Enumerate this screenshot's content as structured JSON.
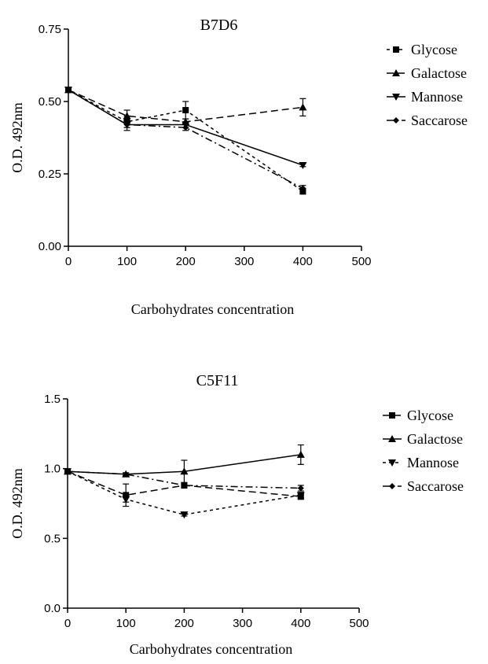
{
  "chart_data": [
    {
      "type": "line",
      "title": "B7D6",
      "xlabel": "Carbohydrates concentration",
      "ylabel": "O.D. 492nm",
      "xlim": [
        0,
        500
      ],
      "ylim": [
        0,
        0.75
      ],
      "x_ticks": [
        "0",
        "100",
        "200",
        "300",
        "400",
        "500"
      ],
      "y_ticks": [
        "0.00",
        "0.25",
        "0.50",
        "0.75"
      ],
      "grid": false,
      "legend_position": "right",
      "x": [
        0,
        100,
        200,
        400
      ],
      "series": [
        {
          "name": "Glycose",
          "marker": "square",
          "dash": "short-dash",
          "values": [
            0.54,
            0.43,
            0.47,
            0.19
          ],
          "errors": [
            0,
            0.02,
            0.03,
            0.01
          ]
        },
        {
          "name": "Galactose",
          "marker": "triangle-up",
          "dash": "dash",
          "values": [
            0.54,
            0.45,
            0.43,
            0.48
          ],
          "errors": [
            0,
            0.02,
            0.01,
            0.03
          ]
        },
        {
          "name": "Mannose",
          "marker": "triangle-down",
          "dash": "solid",
          "values": [
            0.54,
            0.42,
            0.42,
            0.28
          ],
          "errors": [
            0,
            0.02,
            0.01,
            0.005
          ]
        },
        {
          "name": "Saccarose",
          "marker": "diamond",
          "dash": "dash-dot",
          "values": [
            0.54,
            0.42,
            0.41,
            0.2
          ],
          "errors": [
            0,
            0.01,
            0.01,
            0.01
          ]
        }
      ]
    },
    {
      "type": "line",
      "title": "C5F11",
      "xlabel": "Carbohydrates concentration",
      "ylabel": "O.D. 492nm",
      "xlim": [
        0,
        500
      ],
      "ylim": [
        0,
        1.5
      ],
      "x_ticks": [
        "0",
        "100",
        "200",
        "300",
        "400",
        "500"
      ],
      "y_ticks": [
        "0.0",
        "0.5",
        "1.0",
        "1.5"
      ],
      "grid": false,
      "legend_position": "right",
      "x": [
        0,
        100,
        200,
        400
      ],
      "series": [
        {
          "name": "Glycose",
          "marker": "square",
          "dash": "dash",
          "values": [
            0.98,
            0.81,
            0.88,
            0.8
          ],
          "errors": [
            0,
            0.08,
            0.02,
            0.02
          ]
        },
        {
          "name": "Galactose",
          "marker": "triangle-up",
          "dash": "solid",
          "values": [
            0.98,
            0.96,
            0.98,
            1.1
          ],
          "errors": [
            0,
            0.01,
            0.08,
            0.07
          ]
        },
        {
          "name": "Mannose",
          "marker": "triangle-down",
          "dash": "short-dash",
          "values": [
            0.98,
            0.78,
            0.67,
            0.81
          ],
          "errors": [
            0,
            0.02,
            0.01,
            0.02
          ]
        },
        {
          "name": "Saccarose",
          "marker": "diamond",
          "dash": "dash-dot",
          "values": [
            0.98,
            0.96,
            0.88,
            0.86
          ],
          "errors": [
            0,
            0.01,
            0.01,
            0.02
          ]
        }
      ]
    }
  ]
}
